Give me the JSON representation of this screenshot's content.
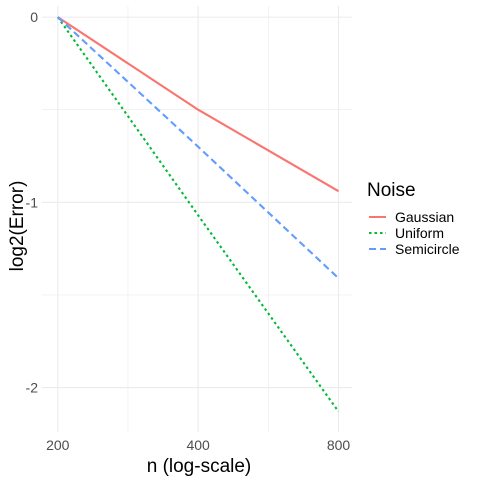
{
  "chart_data": {
    "type": "line",
    "title": "",
    "xlabel": "n (log-scale)",
    "ylabel": "log2(Error)",
    "x_scale": "log",
    "x": [
      200,
      400,
      800
    ],
    "x_ticks": [
      200,
      400,
      800
    ],
    "y_ticks": [
      0,
      -1,
      -2
    ],
    "xlim": [
      185,
      855
    ],
    "ylim": [
      -2.24,
      0.06
    ],
    "grid": true,
    "legend": {
      "title": "Noise",
      "placement": "right"
    },
    "series": [
      {
        "name": "Gaussian",
        "values": [
          0,
          -0.5,
          -0.94
        ],
        "color": "#F8766D",
        "linestyle": "solid"
      },
      {
        "name": "Uniform",
        "values": [
          0,
          -1.07,
          -2.13
        ],
        "color": "#00BA38",
        "linestyle": "dotted"
      },
      {
        "name": "Semicircle",
        "values": [
          0,
          -0.7,
          -1.41
        ],
        "color": "#619CFF",
        "linestyle": "dashed"
      }
    ]
  }
}
